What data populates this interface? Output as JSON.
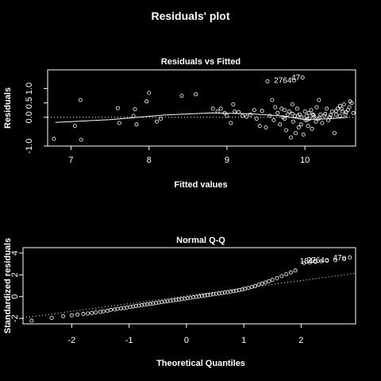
{
  "page": {
    "title": "Residuals' plot"
  },
  "colors": {
    "background": "#000000",
    "foreground": "#ffffff"
  },
  "chart_data": [
    {
      "type": "scatter",
      "title": "Residuals vs Fitted",
      "xlabel": "Fitted values",
      "ylabel": "Residuals",
      "xlim": [
        6.7,
        10.65
      ],
      "ylim": [
        -1.0,
        1.65
      ],
      "xticks": [
        7,
        8,
        9,
        10
      ],
      "yticks": [
        -1.0,
        0.0,
        0.5,
        1.0
      ],
      "ytick_labels": [
        "-1.0",
        "0.0",
        "0.5",
        "1.0"
      ],
      "reference_line": {
        "y": 0,
        "style": "dotted"
      },
      "smoother": {
        "x": [
          6.8,
          7.5,
          8.2,
          8.8,
          9.3,
          9.7,
          10.0,
          10.3,
          10.55
        ],
        "y": [
          -0.18,
          -0.08,
          0.08,
          0.15,
          0.12,
          0.05,
          -0.08,
          -0.05,
          0.0
        ]
      },
      "labeled_points": [
        {
          "label": "2764",
          "x": 9.86,
          "y": 1.28
        },
        {
          "label": "47",
          "x": 9.97,
          "y": 1.38
        }
      ],
      "points": [
        [
          6.78,
          -0.75
        ],
        [
          7.05,
          -0.3
        ],
        [
          7.12,
          0.6
        ],
        [
          7.13,
          -0.78
        ],
        [
          7.6,
          0.32
        ],
        [
          7.62,
          -0.2
        ],
        [
          7.8,
          0.05
        ],
        [
          7.82,
          0.28
        ],
        [
          7.84,
          -0.25
        ],
        [
          7.97,
          0.55
        ],
        [
          8.0,
          0.85
        ],
        [
          8.1,
          -0.15
        ],
        [
          8.15,
          -0.05
        ],
        [
          8.42,
          0.75
        ],
        [
          8.6,
          0.8
        ],
        [
          8.82,
          0.3
        ],
        [
          8.88,
          0.2
        ],
        [
          8.92,
          0.3
        ],
        [
          8.97,
          0.15
        ],
        [
          9.0,
          0.05
        ],
        [
          9.05,
          -0.2
        ],
        [
          9.08,
          0.45
        ],
        [
          9.1,
          0.2
        ],
        [
          9.15,
          0.18
        ],
        [
          9.2,
          0.05
        ],
        [
          9.25,
          0.02
        ],
        [
          9.3,
          0.1
        ],
        [
          9.35,
          0.25
        ],
        [
          9.38,
          -0.05
        ],
        [
          9.42,
          -0.3
        ],
        [
          9.45,
          0.22
        ],
        [
          9.5,
          -0.35
        ],
        [
          9.52,
          1.25
        ],
        [
          9.55,
          0.05
        ],
        [
          9.58,
          0.6
        ],
        [
          9.6,
          -0.1
        ],
        [
          9.62,
          0.35
        ],
        [
          9.65,
          0.15
        ],
        [
          9.68,
          -0.25
        ],
        [
          9.7,
          0.3
        ],
        [
          9.72,
          0.0
        ],
        [
          9.74,
          0.25
        ],
        [
          9.76,
          -0.45
        ],
        [
          9.78,
          0.1
        ],
        [
          9.8,
          0.2
        ],
        [
          9.82,
          -0.7
        ],
        [
          9.84,
          0.45
        ],
        [
          9.85,
          -0.15
        ],
        [
          9.87,
          0.05
        ],
        [
          9.88,
          -0.55
        ],
        [
          9.9,
          0.3
        ],
        [
          9.92,
          -0.35
        ],
        [
          9.93,
          0.1
        ],
        [
          9.95,
          -0.25
        ],
        [
          9.96,
          0.0
        ],
        [
          9.98,
          -0.6
        ],
        [
          10.0,
          0.2
        ],
        [
          10.01,
          -0.1
        ],
        [
          10.02,
          0.05
        ],
        [
          10.04,
          -0.3
        ],
        [
          10.05,
          0.15
        ],
        [
          10.06,
          -0.05
        ],
        [
          10.08,
          0.25
        ],
        [
          10.09,
          -0.4
        ],
        [
          10.1,
          0.1
        ],
        [
          10.12,
          0.02
        ],
        [
          10.14,
          -0.15
        ],
        [
          10.15,
          0.35
        ],
        [
          10.17,
          -0.05
        ],
        [
          10.18,
          0.6
        ],
        [
          10.2,
          0.1
        ],
        [
          10.22,
          -0.2
        ],
        [
          10.25,
          0.05
        ],
        [
          10.28,
          0.3
        ],
        [
          10.3,
          -0.1
        ],
        [
          10.32,
          0.0
        ],
        [
          10.35,
          0.2
        ],
        [
          10.38,
          -0.55
        ],
        [
          10.4,
          0.1
        ],
        [
          10.42,
          0.3
        ],
        [
          10.45,
          0.05
        ],
        [
          10.48,
          0.2
        ],
        [
          10.5,
          0.45
        ],
        [
          10.52,
          0.1
        ],
        [
          10.55,
          0.25
        ],
        [
          10.57,
          0.35
        ],
        [
          10.58,
          0.55
        ],
        [
          10.6,
          0.5
        ],
        [
          10.62,
          0.15
        ],
        [
          10.45,
          0.4
        ],
        [
          9.74,
          -0.05
        ],
        [
          9.84,
          0.12
        ],
        [
          9.91,
          0.05
        ],
        [
          10.03,
          -0.08
        ],
        [
          10.11,
          0.08
        ],
        [
          10.19,
          -0.02
        ],
        [
          10.26,
          0.12
        ],
        [
          10.33,
          0.08
        ],
        [
          10.4,
          0.22
        ],
        [
          10.47,
          0.3
        ],
        [
          10.53,
          0.18
        ]
      ]
    },
    {
      "type": "scatter",
      "title": "Normal Q-Q",
      "xlabel": "Theoretical Quantiles",
      "ylabel": "Standardized residuals",
      "xlim": [
        -2.85,
        2.95
      ],
      "ylim": [
        -2.5,
        4.5
      ],
      "xticks": [
        -2,
        -1,
        0,
        1,
        2
      ],
      "yticks": [
        -2,
        0,
        2,
        4
      ],
      "ytick_labels": [
        "-2",
        "0",
        "2",
        "4"
      ],
      "reference_line": {
        "x": [
          -2.85,
          2.95
        ],
        "y": [
          -1.95,
          2.15
        ],
        "style": "dotted"
      },
      "labeled_points": [
        {
          "label": "184",
          "x": 2.25,
          "y": 3.25
        },
        {
          "label": "2764",
          "x": 2.45,
          "y": 3.35
        },
        {
          "label": "47",
          "x": 2.75,
          "y": 3.55
        }
      ],
      "points": [
        [
          -2.7,
          -2.2
        ],
        [
          -2.35,
          -1.95
        ],
        [
          -2.15,
          -1.8
        ],
        [
          -2.0,
          -1.72
        ],
        [
          -1.9,
          -1.65
        ],
        [
          -1.8,
          -1.58
        ],
        [
          -1.72,
          -1.55
        ],
        [
          -1.65,
          -1.5
        ],
        [
          -1.58,
          -1.45
        ],
        [
          -1.5,
          -1.4
        ],
        [
          -1.45,
          -1.35
        ],
        [
          -1.38,
          -1.3
        ],
        [
          -1.32,
          -1.22
        ],
        [
          -1.25,
          -1.18
        ],
        [
          -1.2,
          -1.12
        ],
        [
          -1.14,
          -1.08
        ],
        [
          -1.09,
          -1.05
        ],
        [
          -1.04,
          -1.0
        ],
        [
          -0.98,
          -0.95
        ],
        [
          -0.93,
          -0.9
        ],
        [
          -0.88,
          -0.86
        ],
        [
          -0.83,
          -0.82
        ],
        [
          -0.78,
          -0.78
        ],
        [
          -0.73,
          -0.74
        ],
        [
          -0.68,
          -0.7
        ],
        [
          -0.63,
          -0.66
        ],
        [
          -0.58,
          -0.62
        ],
        [
          -0.53,
          -0.58
        ],
        [
          -0.48,
          -0.54
        ],
        [
          -0.43,
          -0.5
        ],
        [
          -0.38,
          -0.46
        ],
        [
          -0.33,
          -0.42
        ],
        [
          -0.28,
          -0.38
        ],
        [
          -0.23,
          -0.34
        ],
        [
          -0.18,
          -0.3
        ],
        [
          -0.13,
          -0.26
        ],
        [
          -0.08,
          -0.22
        ],
        [
          -0.03,
          -0.18
        ],
        [
          0.02,
          -0.14
        ],
        [
          0.07,
          -0.1
        ],
        [
          0.12,
          -0.06
        ],
        [
          0.17,
          -0.02
        ],
        [
          0.22,
          0.02
        ],
        [
          0.27,
          0.06
        ],
        [
          0.32,
          0.1
        ],
        [
          0.37,
          0.14
        ],
        [
          0.42,
          0.18
        ],
        [
          0.47,
          0.22
        ],
        [
          0.52,
          0.26
        ],
        [
          0.57,
          0.3
        ],
        [
          0.62,
          0.34
        ],
        [
          0.67,
          0.38
        ],
        [
          0.72,
          0.42
        ],
        [
          0.77,
          0.46
        ],
        [
          0.82,
          0.5
        ],
        [
          0.87,
          0.55
        ],
        [
          0.92,
          0.6
        ],
        [
          0.97,
          0.65
        ],
        [
          1.02,
          0.72
        ],
        [
          1.08,
          0.8
        ],
        [
          1.14,
          0.88
        ],
        [
          1.2,
          0.98
        ],
        [
          1.26,
          1.1
        ],
        [
          1.32,
          1.2
        ],
        [
          1.38,
          1.3
        ],
        [
          1.44,
          1.42
        ],
        [
          1.5,
          1.55
        ],
        [
          1.58,
          1.7
        ],
        [
          1.66,
          1.88
        ],
        [
          1.74,
          2.05
        ],
        [
          1.82,
          2.22
        ],
        [
          1.9,
          2.4
        ],
        [
          2.05,
          3.1
        ],
        [
          2.15,
          3.15
        ],
        [
          2.25,
          3.2
        ],
        [
          2.35,
          3.25
        ],
        [
          2.45,
          3.3
        ],
        [
          2.6,
          3.35
        ],
        [
          2.75,
          3.45
        ],
        [
          2.85,
          3.6
        ]
      ]
    }
  ]
}
